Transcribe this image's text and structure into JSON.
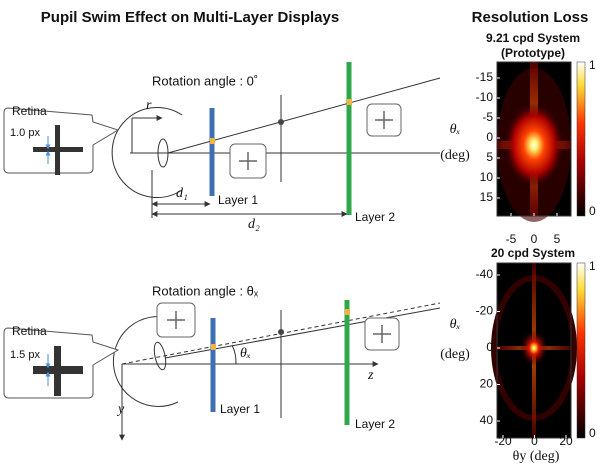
{
  "left": {
    "title": "Pupil Swim Effect on Multi-Layer Displays",
    "top": {
      "rotation": "Rotation angle : 0˚",
      "retina": "Retina",
      "px": "1.0 px",
      "r": "r",
      "d1": "d₁",
      "d2": "d₂",
      "layer1": "Layer 1",
      "layer2": "Layer 2"
    },
    "bottom": {
      "rotation": "Rotation angle : θₓ",
      "retina": "Retina",
      "px": "1.5 px",
      "angle": "θₓ",
      "z": "z",
      "y": "y",
      "layer1": "Layer 1",
      "layer2": "Layer 2"
    }
  },
  "right": {
    "title": "Resolution Loss",
    "panel1": {
      "title": "9.21 cpd System",
      "subtitle": "(Prototype)",
      "ylabel": "θₓ",
      "yunit": "(deg)",
      "yticks": [
        "-15",
        "-10",
        "-5",
        "0",
        "5",
        "10",
        "15"
      ],
      "xticks": [
        "-5",
        "0",
        "5"
      ],
      "cbticks": [
        "1",
        "0"
      ]
    },
    "panel2": {
      "title": "20 cpd System",
      "ylabel": "θₓ",
      "yunit": "(deg)",
      "xlabel": "θy  (deg)",
      "yticks": [
        "-40",
        "-20",
        "0",
        "20",
        "40"
      ],
      "xticks": [
        "-20",
        "0",
        "20"
      ],
      "cbticks": [
        "1",
        "0"
      ]
    }
  }
}
